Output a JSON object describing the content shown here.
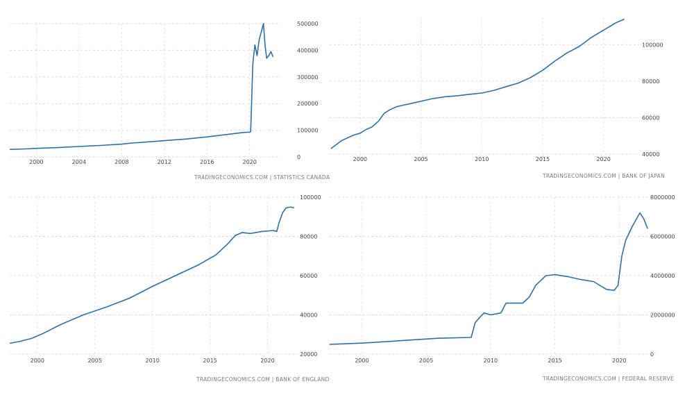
{
  "chart_data": [
    {
      "type": "line",
      "source_text": "TRADINGECONOMICS.COM | STATISTICS CANADA",
      "color": "#2f6fa3",
      "xlim": [
        1997.5,
        2022.3
      ],
      "ylim": [
        0,
        500000
      ],
      "x_ticks": [
        2000,
        2004,
        2008,
        2012,
        2016,
        2020
      ],
      "x_tick_labels": [
        "2000",
        "2004",
        "2008",
        "2012",
        "2016",
        "2020"
      ],
      "y_ticks": [
        0,
        100000,
        200000,
        300000,
        400000,
        500000
      ],
      "y_tick_labels": [
        "0",
        "100000",
        "200000",
        "300000",
        "400000",
        "500000"
      ],
      "y_axis_side": "right",
      "series": [
        {
          "name": "Statistics Canada series",
          "points": [
            [
              1997.5,
              28000
            ],
            [
              1999,
              30000
            ],
            [
              2000,
              32000
            ],
            [
              2002,
              35000
            ],
            [
              2004,
              39000
            ],
            [
              2006,
              43000
            ],
            [
              2008,
              48000
            ],
            [
              2009,
              52000
            ],
            [
              2010,
              55000
            ],
            [
              2012,
              61000
            ],
            [
              2014,
              67000
            ],
            [
              2016,
              75000
            ],
            [
              2018,
              85000
            ],
            [
              2019.5,
              92000
            ],
            [
              2020.0,
              93000
            ],
            [
              2020.1,
              95000
            ],
            [
              2020.3,
              350000
            ],
            [
              2020.5,
              420000
            ],
            [
              2020.7,
              380000
            ],
            [
              2020.9,
              440000
            ],
            [
              2021.1,
              470000
            ],
            [
              2021.3,
              500000
            ],
            [
              2021.45,
              420000
            ],
            [
              2021.6,
              370000
            ],
            [
              2021.8,
              380000
            ],
            [
              2022.0,
              395000
            ],
            [
              2022.2,
              375000
            ]
          ]
        }
      ]
    },
    {
      "type": "line",
      "source_text": "TRADINGECONOMICS.COM | BANK OF JAPAN",
      "color": "#2f6fa3",
      "xlim": [
        1997.5,
        2022.3
      ],
      "ylim": [
        40000,
        115000
      ],
      "x_ticks": [
        2000,
        2005,
        2010,
        2015,
        2020
      ],
      "x_tick_labels": [
        "2000",
        "2005",
        "2010",
        "2015",
        "2020"
      ],
      "y_ticks": [
        40000,
        60000,
        80000,
        100000
      ],
      "y_tick_labels": [
        "40000",
        "60000",
        "80000",
        "100000"
      ],
      "y_axis_side": "right",
      "series": [
        {
          "name": "Bank of Japan series",
          "points": [
            [
              1997.6,
              43000
            ],
            [
              1998,
              45000
            ],
            [
              1998.5,
              47500
            ],
            [
              1999,
              49000
            ],
            [
              1999.5,
              50500
            ],
            [
              2000,
              51500
            ],
            [
              2000.5,
              53500
            ],
            [
              2001,
              55000
            ],
            [
              2001.5,
              58000
            ],
            [
              2002,
              62500
            ],
            [
              2002.5,
              64500
            ],
            [
              2003,
              66000
            ],
            [
              2003.5,
              66800
            ],
            [
              2004,
              67500
            ],
            [
              2005,
              69000
            ],
            [
              2006,
              70500
            ],
            [
              2007,
              71500
            ],
            [
              2008,
              72000
            ],
            [
              2009,
              72800
            ],
            [
              2010,
              73500
            ],
            [
              2011,
              75000
            ],
            [
              2012,
              77000
            ],
            [
              2013,
              79000
            ],
            [
              2014,
              82000
            ],
            [
              2015,
              86000
            ],
            [
              2016,
              91000
            ],
            [
              2017,
              95500
            ],
            [
              2018,
              99000
            ],
            [
              2019,
              104000
            ],
            [
              2020,
              108000
            ],
            [
              2021,
              112000
            ],
            [
              2021.7,
              114000
            ]
          ]
        }
      ]
    },
    {
      "type": "line",
      "source_text": "TRADINGECONOMICS.COM | BANK OF ENGLAND",
      "color": "#2f6fa3",
      "xlim": [
        1997.6,
        2022.5
      ],
      "ylim": [
        20000,
        100000
      ],
      "x_ticks": [
        2000,
        2005,
        2010,
        2015,
        2020
      ],
      "x_tick_labels": [
        "2000",
        "2005",
        "2010",
        "2015",
        "2020"
      ],
      "y_ticks": [
        20000,
        40000,
        60000,
        80000,
        100000
      ],
      "y_tick_labels": [
        "20000",
        "40000",
        "60000",
        "80000",
        "100000"
      ],
      "y_axis_side": "right",
      "series": [
        {
          "name": "Bank of England series",
          "points": [
            [
              1997.6,
              25500
            ],
            [
              1998.5,
              26500
            ],
            [
              1999.5,
              28000
            ],
            [
              2000.5,
              30500
            ],
            [
              2002,
              35000
            ],
            [
              2004,
              40000
            ],
            [
              2006,
              44000
            ],
            [
              2008,
              48500
            ],
            [
              2010,
              54500
            ],
            [
              2012,
              60000
            ],
            [
              2014,
              65500
            ],
            [
              2015.5,
              70500
            ],
            [
              2016.5,
              76000
            ],
            [
              2017.2,
              80500
            ],
            [
              2017.8,
              82000
            ],
            [
              2018.5,
              81500
            ],
            [
              2019.5,
              82500
            ],
            [
              2020.5,
              83000
            ],
            [
              2020.8,
              82500
            ],
            [
              2021.0,
              87000
            ],
            [
              2021.3,
              92000
            ],
            [
              2021.6,
              94500
            ],
            [
              2022.0,
              95000
            ],
            [
              2022.3,
              94500
            ]
          ]
        }
      ]
    },
    {
      "type": "line",
      "source_text": "TRADINGECONOMICS.COM | FEDERAL RESERVE",
      "color": "#2f6fa3",
      "xlim": [
        1997.5,
        2022.3
      ],
      "ylim": [
        0,
        8000000
      ],
      "x_ticks": [
        2000,
        2005,
        2010,
        2015,
        2020
      ],
      "x_tick_labels": [
        "2000",
        "2005",
        "2010",
        "2015",
        "2020"
      ],
      "y_ticks": [
        0,
        2000000,
        4000000,
        6000000,
        8000000
      ],
      "y_tick_labels": [
        "0",
        "2000000",
        "4000000",
        "6000000",
        "8000000"
      ],
      "y_axis_side": "right",
      "series": [
        {
          "name": "Federal Reserve series",
          "points": [
            [
              1997.5,
              500000
            ],
            [
              2000,
              560000
            ],
            [
              2002,
              640000
            ],
            [
              2004,
              730000
            ],
            [
              2006,
              810000
            ],
            [
              2008.5,
              850000
            ],
            [
              2008.8,
              1600000
            ],
            [
              2009.2,
              1900000
            ],
            [
              2009.5,
              2100000
            ],
            [
              2010,
              2000000
            ],
            [
              2010.8,
              2100000
            ],
            [
              2011.2,
              2600000
            ],
            [
              2011.8,
              2600000
            ],
            [
              2012.5,
              2600000
            ],
            [
              2013,
              2900000
            ],
            [
              2013.5,
              3500000
            ],
            [
              2014.3,
              4000000
            ],
            [
              2015,
              4050000
            ],
            [
              2016,
              3950000
            ],
            [
              2017,
              3800000
            ],
            [
              2018,
              3700000
            ],
            [
              2019,
              3300000
            ],
            [
              2019.6,
              3250000
            ],
            [
              2019.9,
              3500000
            ],
            [
              2020.2,
              5000000
            ],
            [
              2020.5,
              5800000
            ],
            [
              2021,
              6500000
            ],
            [
              2021.6,
              7200000
            ],
            [
              2021.9,
              6900000
            ],
            [
              2022.2,
              6400000
            ]
          ]
        }
      ]
    }
  ]
}
